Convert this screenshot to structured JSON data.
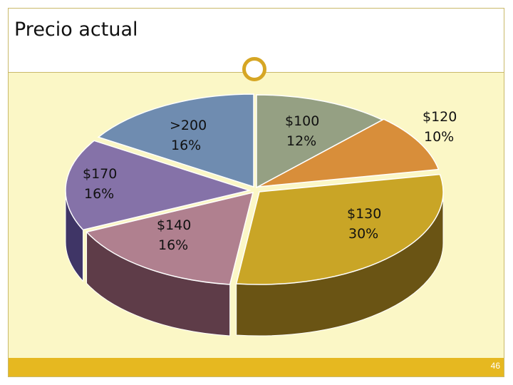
{
  "slide": {
    "title": "Precio actual",
    "page_number": "46"
  },
  "colors": {
    "accent": "#e6b820",
    "content_bg": "#fbf7c6",
    "ring": "#d6a624"
  },
  "chart_data": {
    "type": "pie",
    "style": "3d-exploded-tilted",
    "title": "",
    "slices": [
      {
        "category": "$100",
        "value": 12,
        "percent_label": "12%",
        "color": "#95a083",
        "side_color": "#5b6450"
      },
      {
        "category": "$120",
        "value": 10,
        "percent_label": "10%",
        "color": "#d88e3a",
        "side_color": "#8a5a22"
      },
      {
        "category": "$130",
        "value": 30,
        "percent_label": "30%",
        "color": "#c9a526",
        "side_color": "#6a5414"
      },
      {
        "category": "$140",
        "value": 16,
        "percent_label": "16%",
        "color": "#b0808f",
        "side_color": "#5e3c48"
      },
      {
        "category": "$170",
        "value": 16,
        "percent_label": "16%",
        "color": "#8572a8",
        "side_color": "#3f3566"
      },
      {
        "category": ">200",
        "value": 16,
        "percent_label": "16%",
        "color": "#6f8cb0",
        "side_color": "#3a4c66"
      }
    ]
  }
}
